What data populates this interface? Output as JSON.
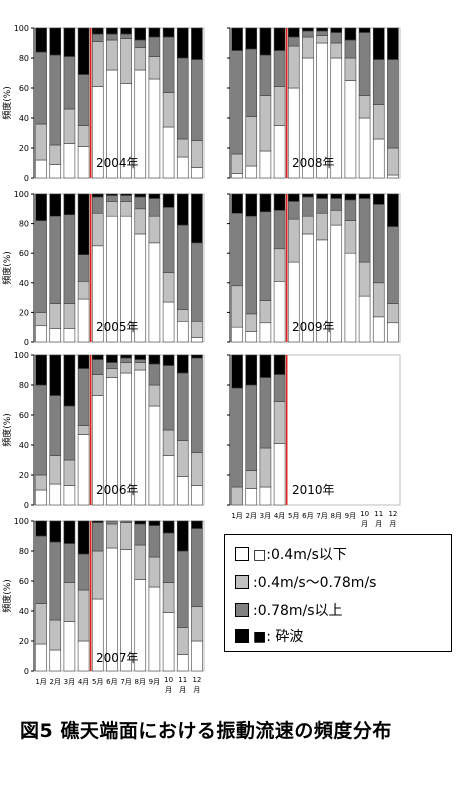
{
  "legend": [
    {
      "label": "□:0.4m/s以下",
      "color": "#ffffff"
    },
    {
      "label": ":0.4m/s～0.78m/s",
      "color": "#c0c0c0"
    },
    {
      "label": ":0.78m/s以上",
      "color": "#808080"
    },
    {
      "label": "■: 砕波",
      "color": "#000000"
    }
  ],
  "caption": "図5 礁天端面における振動流速の頻度分布",
  "chart_data": [
    {
      "type": "bar",
      "stacked": true,
      "ylabel": "頻度(%)",
      "ylim": [
        0,
        100
      ],
      "yticks": [
        0,
        20,
        40,
        60,
        80,
        100
      ],
      "label": "2004年",
      "categories": [
        "1",
        "2",
        "3",
        "4",
        "5",
        "6",
        "7",
        "8",
        "9",
        "10",
        "11",
        "12"
      ],
      "series": [
        {
          "name": "0.4m/s以下",
          "values": [
            12,
            9,
            23,
            21,
            61,
            72,
            63,
            72,
            66,
            34,
            14,
            7
          ]
        },
        {
          "name": "0.4m/s～0.78m/s",
          "values": [
            24,
            13,
            23,
            14,
            30,
            20,
            30,
            15,
            15,
            23,
            12,
            18
          ]
        },
        {
          "name": "0.78m/s以上",
          "values": [
            48,
            60,
            35,
            34,
            5,
            4,
            3,
            5,
            13,
            37,
            54,
            54
          ]
        },
        {
          "name": "砕波",
          "values": [
            16,
            18,
            19,
            31,
            4,
            4,
            4,
            8,
            6,
            6,
            20,
            21
          ]
        }
      ]
    },
    {
      "type": "bar",
      "stacked": true,
      "ylabel": "頻度(%)",
      "ylim": [
        0,
        100
      ],
      "yticks": [
        0,
        20,
        40,
        60,
        80,
        100
      ],
      "label": "2008年",
      "categories": [
        "1",
        "2",
        "3",
        "4",
        "5",
        "6",
        "7",
        "8",
        "9",
        "10",
        "11",
        "12"
      ],
      "series": [
        {
          "name": "0.4m/s以下",
          "values": [
            3,
            8,
            18,
            35,
            60,
            80,
            90,
            80,
            65,
            40,
            26,
            2
          ]
        },
        {
          "name": "0.4m/s～0.78m/s",
          "values": [
            13,
            33,
            37,
            26,
            28,
            14,
            5,
            10,
            15,
            15,
            23,
            18
          ]
        },
        {
          "name": "0.78m/s以上",
          "values": [
            69,
            45,
            27,
            24,
            6,
            4,
            3,
            7,
            12,
            42,
            30,
            59
          ]
        },
        {
          "name": "砕波",
          "values": [
            15,
            14,
            18,
            15,
            6,
            2,
            2,
            3,
            8,
            3,
            21,
            21
          ]
        }
      ]
    },
    {
      "type": "bar",
      "stacked": true,
      "ylabel": "頻度(%)",
      "ylim": [
        0,
        100
      ],
      "yticks": [
        0,
        20,
        40,
        60,
        80,
        100
      ],
      "label": "2005年",
      "categories": [
        "1",
        "2",
        "3",
        "4",
        "5",
        "6",
        "7",
        "8",
        "9",
        "10",
        "11",
        "12"
      ],
      "series": [
        {
          "name": "0.4m/s以下",
          "values": [
            11,
            9,
            9,
            29,
            65,
            85,
            85,
            73,
            67,
            27,
            14,
            3
          ]
        },
        {
          "name": "0.4m/s～0.78m/s",
          "values": [
            9,
            17,
            17,
            12,
            22,
            10,
            10,
            17,
            18,
            20,
            8,
            11
          ]
        },
        {
          "name": "0.78m/s以上",
          "values": [
            62,
            59,
            60,
            18,
            11,
            4,
            4,
            8,
            12,
            44,
            57,
            53
          ]
        },
        {
          "name": "砕波",
          "values": [
            18,
            15,
            14,
            41,
            2,
            1,
            1,
            2,
            3,
            9,
            21,
            33
          ]
        }
      ]
    },
    {
      "type": "bar",
      "stacked": true,
      "ylabel": "頻度(%)",
      "ylim": [
        0,
        100
      ],
      "yticks": [
        0,
        20,
        40,
        60,
        80,
        100
      ],
      "label": "2009年",
      "categories": [
        "1",
        "2",
        "3",
        "4",
        "5",
        "6",
        "7",
        "8",
        "9",
        "10",
        "11",
        "12"
      ],
      "series": [
        {
          "name": "0.4m/s以下",
          "values": [
            10,
            7,
            13,
            41,
            54,
            73,
            69,
            79,
            60,
            31,
            17,
            13
          ]
        },
        {
          "name": "0.4m/s～0.78m/s",
          "values": [
            28,
            12,
            15,
            22,
            29,
            12,
            18,
            10,
            22,
            23,
            23,
            13
          ]
        },
        {
          "name": "0.78m/s以上",
          "values": [
            49,
            66,
            60,
            26,
            12,
            13,
            10,
            8,
            14,
            43,
            53,
            52
          ]
        },
        {
          "name": "砕波",
          "values": [
            13,
            15,
            12,
            11,
            5,
            2,
            3,
            3,
            4,
            3,
            7,
            22
          ]
        }
      ]
    },
    {
      "type": "bar",
      "stacked": true,
      "ylabel": "頻度(%)",
      "ylim": [
        0,
        100
      ],
      "yticks": [
        0,
        20,
        40,
        60,
        80,
        100
      ],
      "label": "2006年",
      "categories": [
        "1",
        "2",
        "3",
        "4",
        "5",
        "6",
        "7",
        "8",
        "9",
        "10",
        "11",
        "12"
      ],
      "series": [
        {
          "name": "0.4m/s以下",
          "values": [
            10,
            14,
            13,
            47,
            73,
            85,
            88,
            90,
            66,
            33,
            19,
            13
          ]
        },
        {
          "name": "0.4m/s～0.78m/s",
          "values": [
            10,
            19,
            17,
            6,
            14,
            6,
            7,
            5,
            14,
            17,
            24,
            22
          ]
        },
        {
          "name": "0.78m/s以上",
          "values": [
            60,
            40,
            36,
            38,
            10,
            4,
            3,
            2,
            14,
            43,
            45,
            63
          ]
        },
        {
          "name": "砕波",
          "values": [
            20,
            27,
            34,
            9,
            3,
            5,
            2,
            3,
            6,
            7,
            12,
            2
          ]
        }
      ]
    },
    {
      "type": "bar",
      "stacked": true,
      "ylabel": "",
      "ylim": [
        0,
        100
      ],
      "yticks": [
        0,
        20,
        40,
        60,
        80,
        100
      ],
      "label": "2010年",
      "categories": [
        "1",
        "2",
        "3",
        "4",
        "5",
        "6",
        "7",
        "8",
        "9",
        "10",
        "11",
        "12"
      ],
      "series": [
        {
          "name": "0.4m/s以下",
          "values": [
            0,
            11,
            12,
            41,
            0,
            0,
            0,
            0,
            0,
            0,
            0,
            0
          ]
        },
        {
          "name": "0.4m/s～0.78m/s",
          "values": [
            12,
            12,
            26,
            28,
            0,
            0,
            0,
            0,
            0,
            0,
            0,
            0
          ]
        },
        {
          "name": "0.78m/s以上",
          "values": [
            66,
            57,
            47,
            18,
            0,
            0,
            0,
            0,
            0,
            0,
            0,
            0
          ]
        },
        {
          "name": "砕波",
          "values": [
            22,
            20,
            15,
            13,
            0,
            0,
            0,
            0,
            0,
            0,
            0,
            0
          ]
        }
      ]
    },
    {
      "type": "bar",
      "stacked": true,
      "ylabel": "頻度(%)",
      "ylim": [
        0,
        100
      ],
      "yticks": [
        0,
        20,
        40,
        60,
        80,
        100
      ],
      "label": "2007年",
      "categories": [
        "1",
        "2",
        "3",
        "4",
        "5",
        "6",
        "7",
        "8",
        "9",
        "10",
        "11",
        "12"
      ],
      "series": [
        {
          "name": "0.4m/s以下",
          "values": [
            18,
            14,
            33,
            20,
            48,
            82,
            81,
            61,
            56,
            39,
            11,
            20
          ]
        },
        {
          "name": "0.4m/s～0.78m/s",
          "values": [
            27,
            20,
            26,
            34,
            32,
            16,
            18,
            23,
            20,
            20,
            18,
            23
          ]
        },
        {
          "name": "0.78m/s以上",
          "values": [
            45,
            52,
            26,
            24,
            19,
            2,
            1,
            14,
            21,
            33,
            51,
            52
          ]
        },
        {
          "name": "砕波",
          "values": [
            10,
            14,
            15,
            22,
            1,
            0,
            0,
            2,
            3,
            8,
            20,
            5
          ]
        }
      ]
    }
  ],
  "xaxis": {
    "month_labels": [
      "1月",
      "2月",
      "3月",
      "4月",
      "5月",
      "6月",
      "7月",
      "8月",
      "9月",
      "10月",
      "11月",
      "12月"
    ],
    "month_label_10_top": "10",
    "month_label_10_bottom": "月",
    "month_label_11_top": "11",
    "month_label_11_bottom": "月",
    "month_label_12_top": "12",
    "month_label_12_bottom": "月"
  },
  "colors": {
    "series": [
      "#ffffff",
      "#c0c0c0",
      "#808080",
      "#000000"
    ],
    "divider": "#e0201a"
  }
}
